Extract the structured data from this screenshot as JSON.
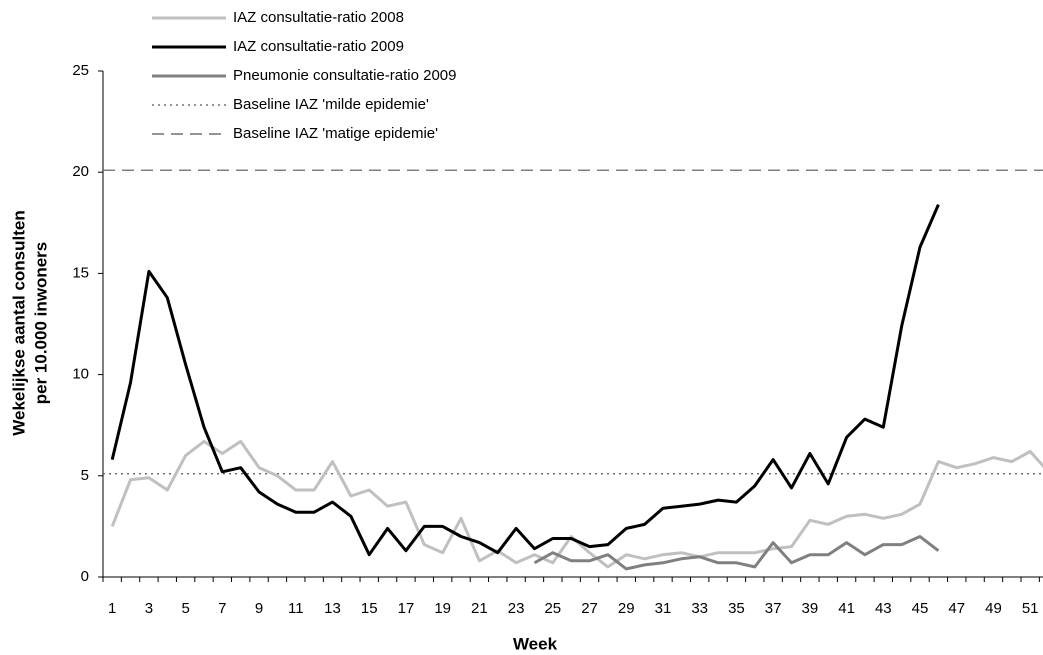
{
  "chart_data": {
    "type": "line",
    "y_label": [
      "Wekelijkse aantal consulten",
      "per 10.000 inwoners"
    ],
    "x_label": "Week",
    "categories": [
      1,
      null,
      3,
      null,
      5,
      null,
      7,
      null,
      9,
      null,
      11,
      null,
      13,
      null,
      15,
      null,
      17,
      null,
      19,
      null,
      21,
      null,
      23,
      null,
      25,
      null,
      27,
      null,
      29,
      null,
      31,
      null,
      33,
      null,
      35,
      null,
      37,
      null,
      39,
      null,
      41,
      null,
      43,
      null,
      45,
      null,
      47,
      null,
      49,
      null,
      51,
      null
    ],
    "series": [
      {
        "name": "IAZ consultatie-ratio 2008",
        "color": "#c0c0c0",
        "values": [
          2.5,
          4.8,
          4.9,
          4.3,
          6.0,
          6.7,
          6.1,
          6.7,
          5.4,
          5.0,
          4.3,
          4.3,
          5.7,
          4.0,
          4.3,
          3.5,
          3.7,
          1.6,
          1.2,
          2.9,
          0.8,
          1.3,
          0.7,
          1.1,
          0.7,
          2.0,
          1.2,
          0.5,
          1.1,
          0.9,
          1.1,
          1.2,
          1.0,
          1.2,
          1.2,
          1.2,
          1.4,
          1.5,
          2.8,
          2.6,
          3.0,
          3.1,
          2.9,
          3.1,
          3.6,
          5.7,
          5.4,
          5.6,
          5.9,
          5.7,
          6.2,
          5.2
        ]
      },
      {
        "name": "IAZ consultatie-ratio 2009",
        "color": "#000000",
        "values": [
          5.8,
          9.6,
          15.1,
          13.8,
          10.5,
          7.4,
          5.2,
          5.4,
          4.2,
          3.6,
          3.2,
          3.2,
          3.7,
          3.0,
          1.1,
          2.4,
          1.3,
          2.5,
          2.5,
          2.0,
          1.7,
          1.2,
          2.4,
          1.4,
          1.9,
          1.9,
          1.5,
          1.6,
          2.4,
          2.6,
          3.4,
          3.5,
          3.6,
          3.8,
          3.7,
          4.5,
          5.8,
          4.4,
          6.1,
          4.6,
          6.9,
          7.8,
          7.4,
          12.4,
          16.3,
          18.4,
          null,
          null,
          null,
          null,
          null,
          null
        ]
      },
      {
        "name": "Pneumonie consultatie-ratio 2009",
        "color": "#808080",
        "values": [
          null,
          null,
          null,
          null,
          null,
          null,
          null,
          null,
          null,
          null,
          null,
          null,
          null,
          null,
          null,
          null,
          null,
          null,
          null,
          null,
          null,
          null,
          null,
          0.7,
          1.2,
          0.8,
          0.8,
          1.1,
          0.4,
          0.6,
          0.7,
          0.9,
          1.0,
          0.7,
          0.7,
          0.5,
          1.7,
          0.7,
          1.1,
          1.1,
          1.7,
          1.1,
          1.6,
          1.6,
          2.0,
          1.3,
          null,
          null,
          null,
          null,
          null,
          null
        ]
      }
    ],
    "reference_lines": [
      {
        "name": "Baseline IAZ 'milde epidemie'",
        "value": 5.1,
        "color": "#555555",
        "dash": "2,4"
      },
      {
        "name": "Baseline IAZ 'matige epidemie'",
        "value": 20.1,
        "color": "#555555",
        "dash": "12,7"
      }
    ],
    "ylim": [
      0,
      25
    ],
    "yticks": [
      0,
      5,
      10,
      15,
      20,
      25
    ]
  }
}
